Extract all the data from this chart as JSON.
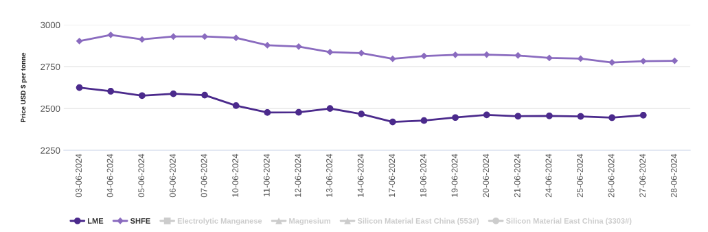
{
  "chart_data": {
    "type": "line",
    "ylabel": "Price USD $ per tonne",
    "categories": [
      "03-06-2024",
      "04-06-2024",
      "05-06-2024",
      "06-06-2024",
      "07-06-2024",
      "10-06-2024",
      "11-06-2024",
      "12-06-2024",
      "13-06-2024",
      "14-06-2024",
      "17-06-2024",
      "18-06-2024",
      "19-06-2024",
      "20-06-2024",
      "21-06-2024",
      "24-06-2024",
      "25-06-2024",
      "26-06-2024",
      "27-06-2024",
      "28-06-2024"
    ],
    "series": [
      {
        "name": "LME",
        "color": "#4b2a8c",
        "marker": "circle",
        "values": [
          2625,
          2603,
          2577,
          2588,
          2580,
          2517,
          2476,
          2477,
          2500,
          2467,
          2420,
          2428,
          2446,
          2462,
          2454,
          2456,
          2453,
          2445,
          2460,
          null
        ]
      },
      {
        "name": "SHFE",
        "color": "#8a6bbf",
        "marker": "diamond",
        "values": [
          2903,
          2940,
          2913,
          2930,
          2930,
          2922,
          2878,
          2870,
          2837,
          2831,
          2797,
          2814,
          2821,
          2822,
          2817,
          2802,
          2798,
          2775,
          2783,
          2785
        ]
      },
      {
        "name": "Electrolytic Manganese",
        "color": "#cccccc",
        "marker": "square",
        "values": [
          null,
          null,
          null,
          null,
          null,
          null,
          null,
          null,
          null,
          null,
          null,
          null,
          null,
          null,
          null,
          null,
          null,
          null,
          null,
          null
        ]
      },
      {
        "name": "Magnesium",
        "color": "#cccccc",
        "marker": "triangle",
        "values": [
          null,
          null,
          null,
          null,
          null,
          null,
          null,
          null,
          null,
          null,
          null,
          null,
          null,
          null,
          null,
          null,
          null,
          null,
          null,
          null
        ]
      },
      {
        "name": "Silicon Material East China (553#)",
        "color": "#cccccc",
        "marker": "triangle",
        "values": [
          null,
          null,
          null,
          null,
          null,
          null,
          null,
          null,
          null,
          null,
          null,
          null,
          null,
          null,
          null,
          null,
          null,
          null,
          null,
          null
        ]
      },
      {
        "name": "Silicon Material East China (3303#)",
        "color": "#cccccc",
        "marker": "circle",
        "values": [
          null,
          null,
          null,
          null,
          null,
          null,
          null,
          null,
          null,
          null,
          null,
          null,
          null,
          null,
          null,
          null,
          null,
          null,
          null,
          null
        ]
      }
    ],
    "ylim": [
      2250,
      3000
    ],
    "yticks": [
      2250,
      2500,
      2750,
      3000
    ],
    "grid": "y",
    "legend": "bottom",
    "line_style": "solid"
  }
}
